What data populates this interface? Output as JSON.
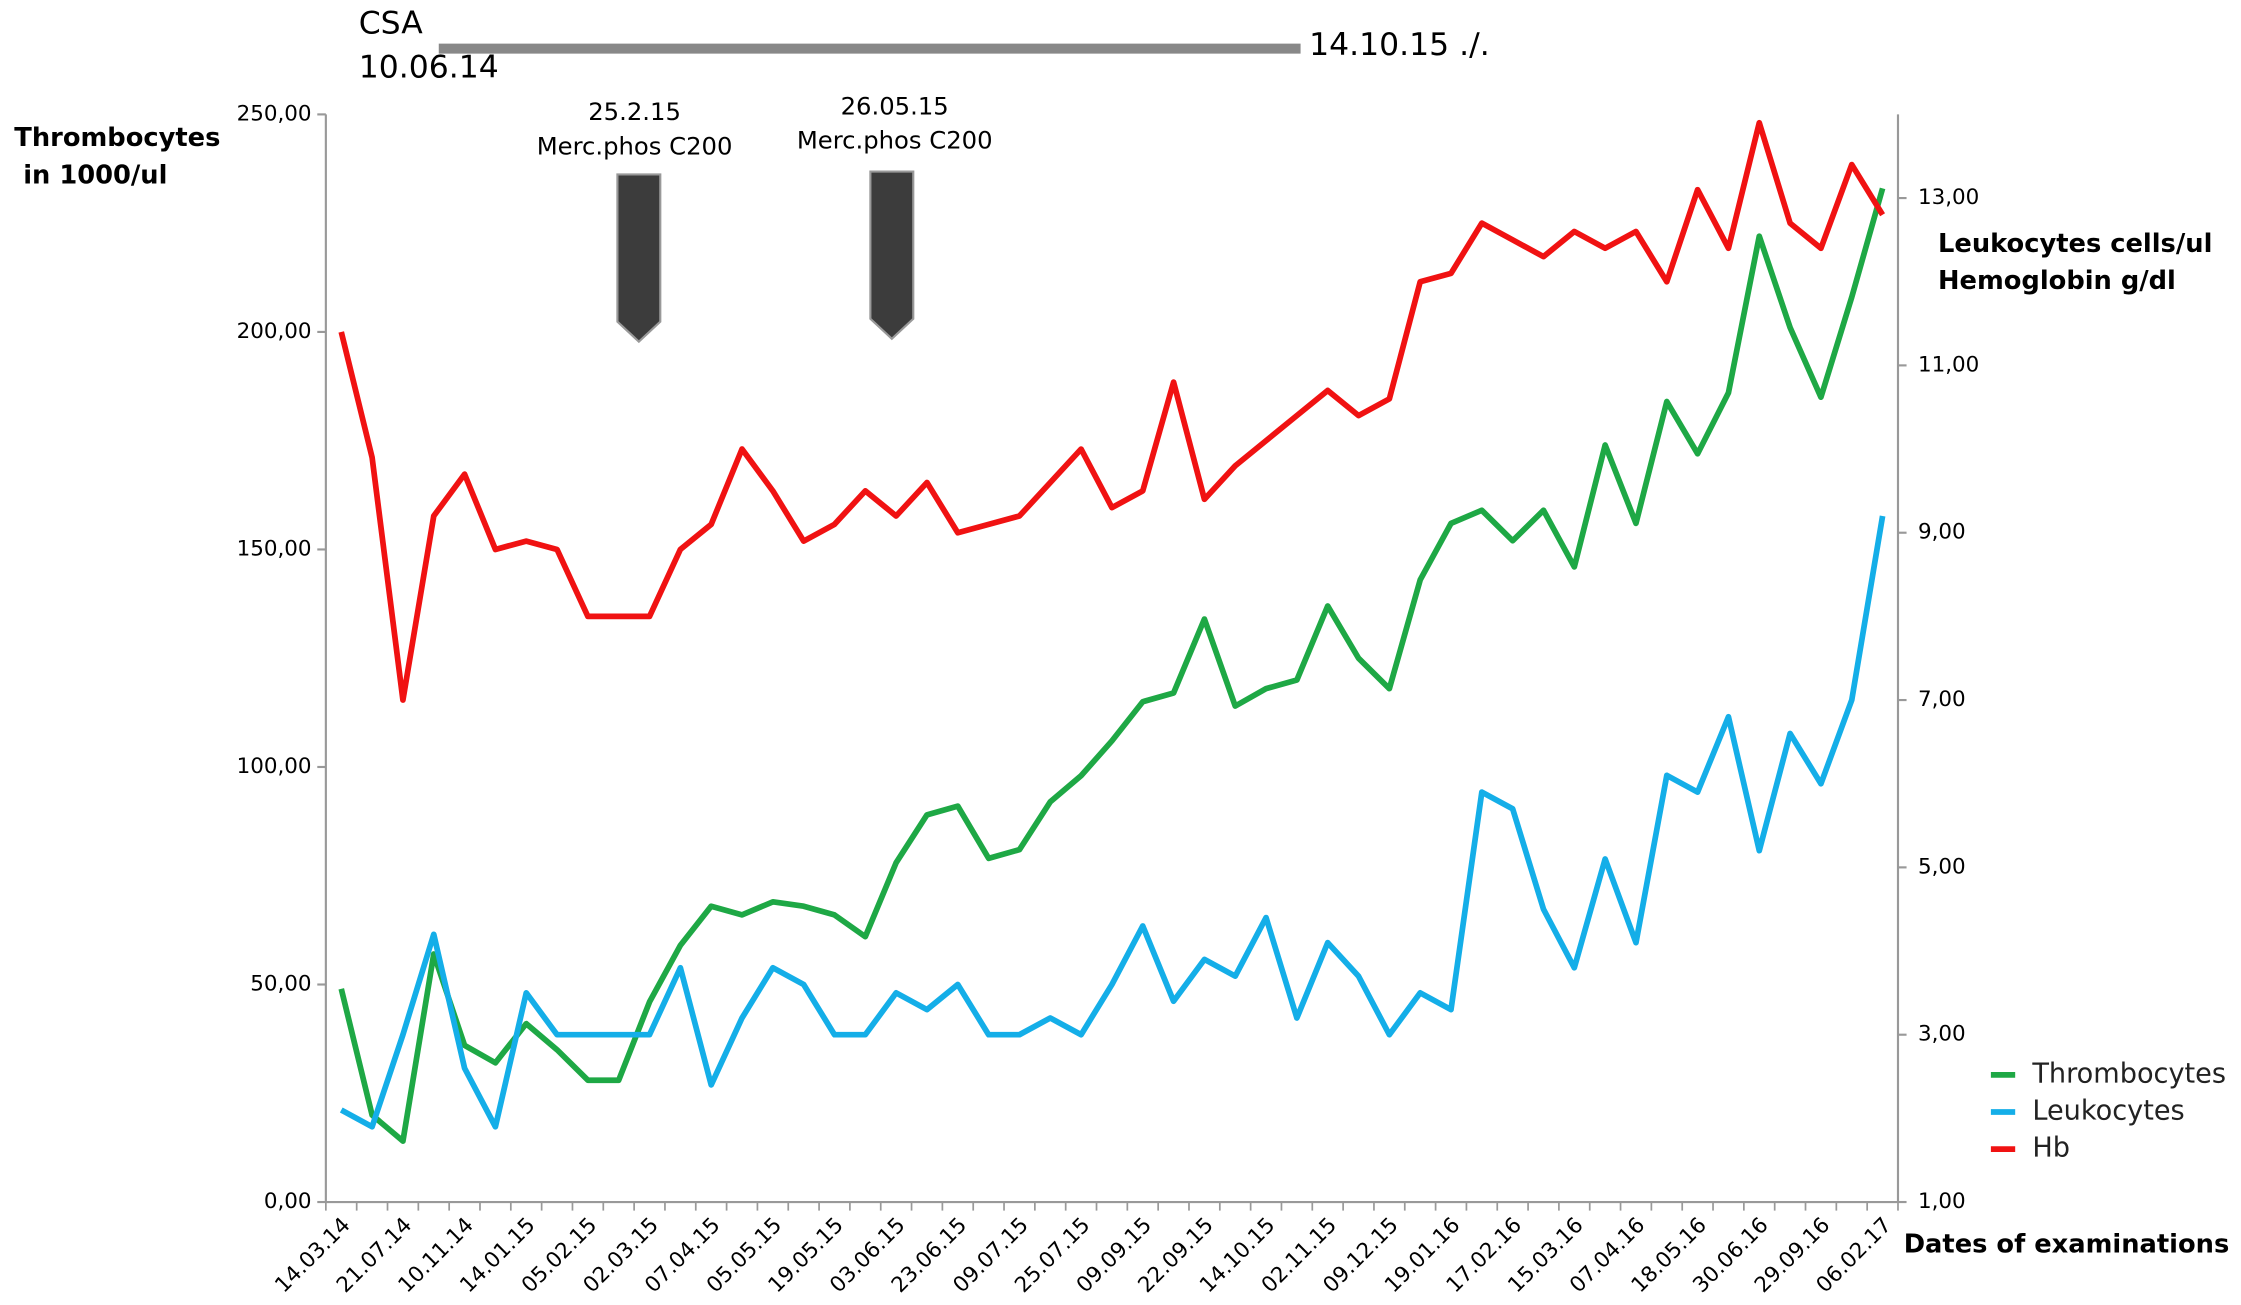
{
  "chart_data": {
    "type": "line",
    "y_label": [
      "Thrombocytes",
      " in 1000/ul"
    ],
    "y2_label": [
      "Leukocytes cells/ul",
      "Hemoglobin g/dl"
    ],
    "x_label": "Dates of examinations",
    "annotations": {
      "csa": "CSA",
      "csa_start": "10.06.14",
      "csa_end": "14.10.15 ./.",
      "arrows": [
        {
          "date": "25.2.15",
          "text": "Merc.phos C200"
        },
        {
          "date": "26.05.15",
          "text": "Merc.phos C200"
        }
      ]
    },
    "categories": [
      "14.03.14",
      null,
      "21.07.14",
      null,
      "10.11.14",
      null,
      "14.01.15",
      null,
      "05.02.15",
      null,
      "02.03.15",
      null,
      "07.04.15",
      null,
      "05.05.15",
      null,
      "19.05.15",
      null,
      "03.06.15",
      null,
      "23.06.15",
      null,
      "09.07.15",
      null,
      "25.07.15",
      null,
      "09.09.15",
      null,
      "22.09.15",
      null,
      "14.10.15",
      null,
      "02.11.15",
      null,
      "09.12.15",
      null,
      "19.01.16",
      null,
      "17.02.16",
      null,
      "15.03.16",
      null,
      "07.04.16",
      null,
      "18.05.16",
      null,
      "30.06.16",
      null,
      "29.09.16",
      null,
      "06.02.17"
    ],
    "ylim": [
      0,
      250
    ],
    "yticks": [
      {
        "value": 0,
        "label": "0,00"
      },
      {
        "value": 50,
        "label": "50,00"
      },
      {
        "value": 100,
        "label": "100,00"
      },
      {
        "value": 150,
        "label": "150,00"
      },
      {
        "value": 200,
        "label": "200,00"
      },
      {
        "value": 250,
        "label": "250,00"
      }
    ],
    "y2lim": [
      1,
      14
    ],
    "y2ticks": [
      {
        "value": 1,
        "label": "1,00"
      },
      {
        "value": 3,
        "label": "3,00"
      },
      {
        "value": 5,
        "label": "5,00"
      },
      {
        "value": 7,
        "label": "7,00"
      },
      {
        "value": 9,
        "label": "9,00"
      },
      {
        "value": 11,
        "label": "11,00"
      },
      {
        "value": 13,
        "label": "13,00"
      }
    ],
    "grid": false,
    "legend": "right",
    "series": [
      {
        "name": "Thrombocytes",
        "color": "#1ea845",
        "axis": "y",
        "values": [
          49,
          20,
          14,
          57,
          36,
          32,
          41,
          35,
          28,
          28,
          46,
          59,
          68,
          66,
          69,
          68,
          66,
          61,
          78,
          89,
          91,
          79,
          81,
          92,
          98,
          106,
          115,
          117,
          134,
          114,
          118,
          120,
          137,
          125,
          118,
          143,
          156,
          159,
          152,
          159,
          146,
          174,
          156,
          184,
          172,
          186,
          222,
          201,
          185,
          208,
          233
        ]
      },
      {
        "name": "Leukocytes",
        "color": "#14aee8",
        "axis": "y2",
        "values": [
          2.1,
          1.9,
          3.0,
          4.2,
          2.6,
          1.9,
          3.5,
          3.0,
          3.0,
          3.0,
          3.0,
          3.8,
          2.4,
          3.2,
          3.8,
          3.6,
          3.0,
          3.0,
          3.5,
          3.3,
          3.6,
          3.0,
          3.0,
          3.2,
          3.0,
          3.6,
          4.3,
          3.4,
          3.9,
          3.7,
          4.4,
          3.2,
          4.1,
          3.7,
          3.0,
          3.5,
          3.3,
          5.9,
          5.7,
          4.5,
          3.8,
          5.1,
          4.1,
          6.1,
          5.9,
          6.8,
          5.2,
          6.6,
          6.0,
          7.0,
          9.2
        ]
      },
      {
        "name": "Hb",
        "color": "#f01212",
        "axis": "y2",
        "values": [
          11.4,
          9.9,
          7.0,
          9.2,
          9.7,
          8.8,
          8.9,
          8.8,
          8.0,
          8.0,
          8.0,
          8.8,
          9.1,
          10.0,
          9.5,
          8.9,
          9.1,
          9.5,
          9.2,
          9.6,
          9.0,
          9.1,
          9.2,
          9.6,
          10.0,
          9.3,
          9.5,
          10.8,
          9.4,
          9.8,
          10.1,
          10.4,
          10.7,
          10.4,
          10.6,
          12.0,
          12.1,
          12.7,
          12.5,
          12.3,
          12.6,
          12.4,
          12.6,
          12.0,
          13.1,
          12.4,
          13.9,
          12.7,
          12.4,
          13.4,
          12.8
        ]
      }
    ]
  }
}
